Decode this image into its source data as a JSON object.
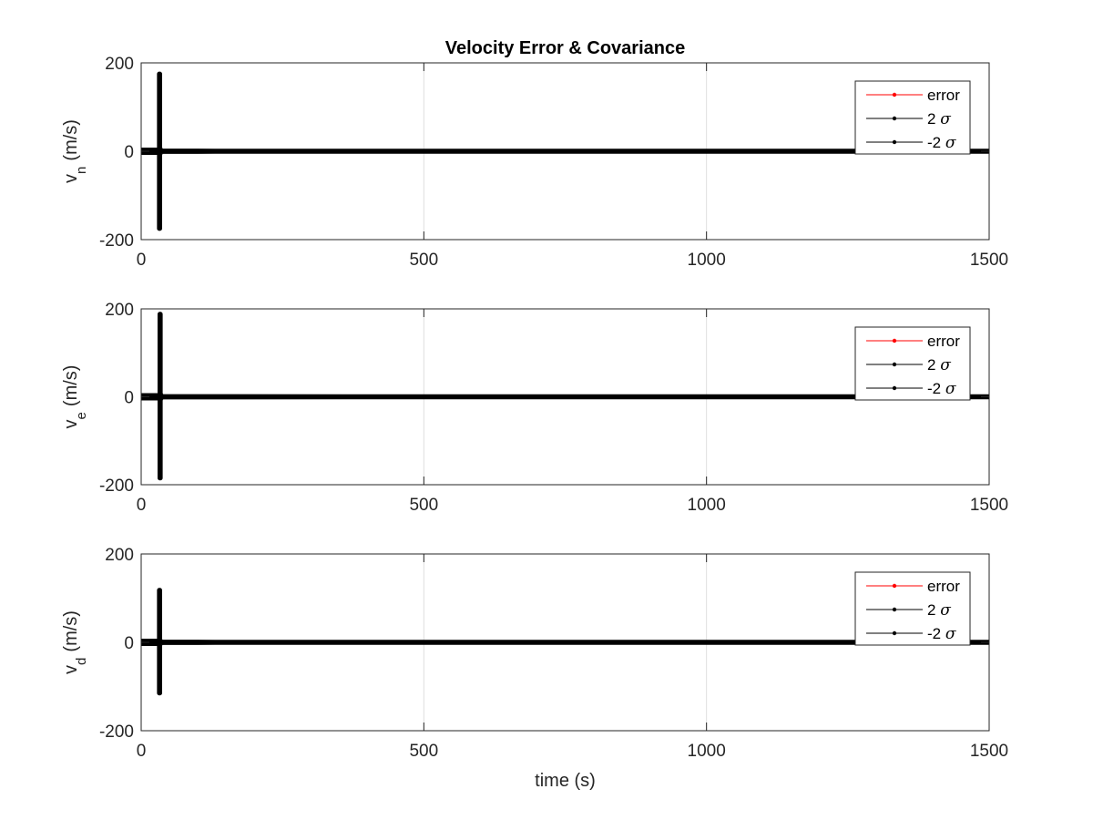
{
  "colors": {
    "error": "#ff0000",
    "sigma": "#000000",
    "grid": "#dedede",
    "axis": "#262626"
  },
  "chart_data": [
    {
      "type": "line",
      "title": "Velocity Error & Covariance",
      "ylabel": "v",
      "ylabel_sub": "n",
      "ylabel_unit": "(m/s)",
      "xlabel": "",
      "xlim": [
        0,
        1500
      ],
      "ylim": [
        -200,
        200
      ],
      "xticks": [
        0,
        500,
        1000,
        1500
      ],
      "yticks": [
        -200,
        0,
        200
      ],
      "grid": "x-major",
      "legend_position": "top-right",
      "series": [
        {
          "name": "error",
          "color": "#ff0000",
          "x": [
            0,
            1500
          ],
          "y": [
            0,
            0
          ]
        },
        {
          "name": "2 σ",
          "color": "#000000",
          "x": [
            0,
            32,
            32,
            33,
            33,
            34,
            34,
            35,
            40,
            100,
            130,
            500,
            1000,
            1500
          ],
          "y": [
            3,
            3,
            175,
            175,
            5,
            5,
            2,
            1,
            0.8,
            0.7,
            0.6,
            0.5,
            0.5,
            0.5
          ]
        },
        {
          "name": "-2 σ",
          "color": "#000000",
          "x": [
            0,
            32,
            32,
            33,
            33,
            34,
            34,
            35,
            40,
            100,
            130,
            500,
            1000,
            1500
          ],
          "y": [
            -3,
            -3,
            -175,
            -175,
            -5,
            -5,
            -2,
            -1,
            -0.8,
            -0.7,
            -0.6,
            -0.5,
            -0.5,
            -0.5
          ]
        }
      ]
    },
    {
      "type": "line",
      "title": "",
      "ylabel": "v",
      "ylabel_sub": "e",
      "ylabel_unit": "(m/s)",
      "xlabel": "",
      "xlim": [
        0,
        1500
      ],
      "ylim": [
        -200,
        200
      ],
      "xticks": [
        0,
        500,
        1000,
        1500
      ],
      "yticks": [
        -200,
        0,
        200
      ],
      "grid": "x-major",
      "legend_position": "top-right",
      "series": [
        {
          "name": "error",
          "color": "#ff0000",
          "x": [
            0,
            1500
          ],
          "y": [
            0,
            0
          ]
        },
        {
          "name": "2 σ",
          "color": "#000000",
          "x": [
            0,
            33,
            33,
            34,
            34,
            35,
            35,
            36,
            40,
            100,
            500,
            1000,
            1500
          ],
          "y": [
            3,
            3,
            188,
            188,
            5,
            5,
            2,
            1,
            0.8,
            0.7,
            0.5,
            0.5,
            0.5
          ]
        },
        {
          "name": "-2 σ",
          "color": "#000000",
          "x": [
            0,
            33,
            33,
            34,
            34,
            35,
            35,
            36,
            40,
            100,
            500,
            1000,
            1500
          ],
          "y": [
            -3,
            -3,
            -185,
            -185,
            -5,
            -5,
            -2,
            -1,
            -0.8,
            -0.7,
            -0.5,
            -0.5,
            -0.5
          ]
        }
      ]
    },
    {
      "type": "line",
      "title": "",
      "ylabel": "v",
      "ylabel_sub": "d",
      "ylabel_unit": "(m/s)",
      "xlabel": "time (s)",
      "xlim": [
        0,
        1500
      ],
      "ylim": [
        -200,
        200
      ],
      "xticks": [
        0,
        500,
        1000,
        1500
      ],
      "yticks": [
        -200,
        0,
        200
      ],
      "grid": "x-major",
      "legend_position": "top-right",
      "series": [
        {
          "name": "error",
          "color": "#ff0000",
          "x": [
            0,
            1500
          ],
          "y": [
            0,
            0
          ]
        },
        {
          "name": "2 σ",
          "color": "#000000",
          "x": [
            0,
            32,
            32,
            33,
            33,
            34,
            34,
            35,
            40,
            100,
            130,
            500,
            1000,
            1500
          ],
          "y": [
            3,
            3,
            118,
            118,
            4,
            4,
            2,
            1,
            0.8,
            0.7,
            0.6,
            0.5,
            0.5,
            0.5
          ]
        },
        {
          "name": "-2 σ",
          "color": "#000000",
          "x": [
            0,
            32,
            32,
            33,
            33,
            34,
            34,
            35,
            40,
            100,
            130,
            500,
            1000,
            1500
          ],
          "y": [
            -3,
            -3,
            -115,
            -115,
            -4,
            -4,
            -2,
            -1,
            -0.8,
            -0.7,
            -0.6,
            -0.5,
            -0.5,
            -0.5
          ]
        }
      ]
    }
  ]
}
